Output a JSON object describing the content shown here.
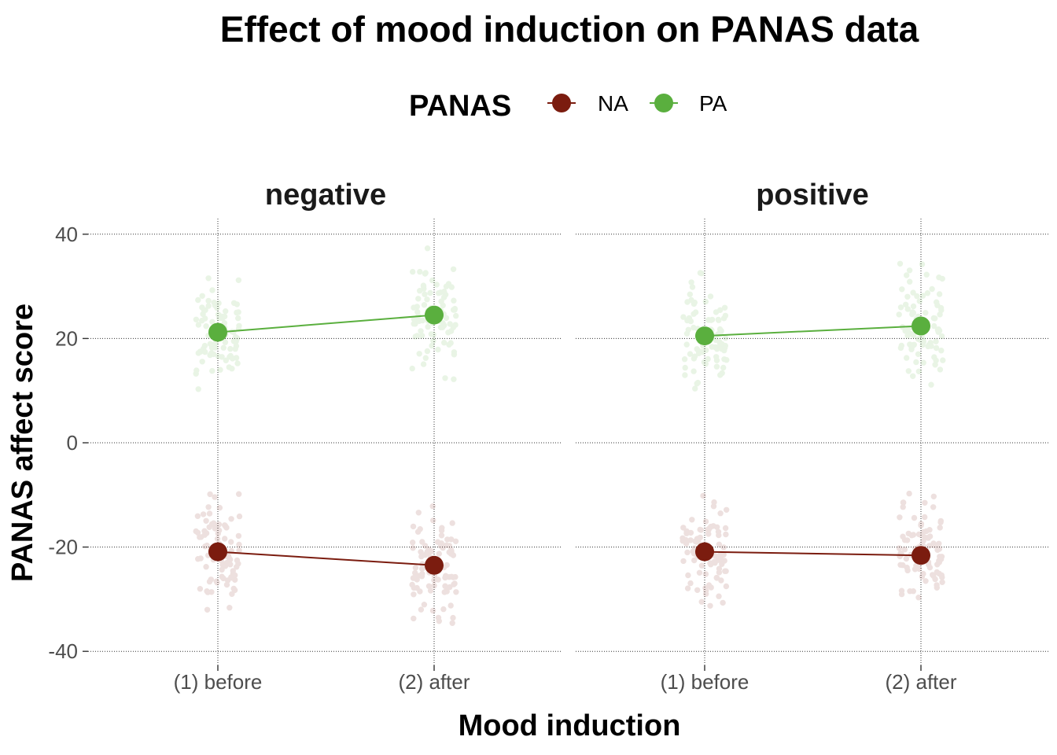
{
  "chart_data": {
    "type": "line",
    "title": "Effect of mood induction on PANAS data",
    "xlabel": "Mood induction",
    "ylabel": "PANAS affect score",
    "ylim": [
      -42,
      42
    ],
    "yticks": [
      40,
      20,
      0,
      -20,
      -40
    ],
    "categories": [
      "(1) before",
      "(2) after"
    ],
    "legend": {
      "title": "PANAS",
      "position": "top",
      "entries": [
        {
          "key": "NA",
          "label": "NA",
          "color": "#7b1c0f"
        },
        {
          "key": "PA",
          "label": "PA",
          "color": "#5aaf3e"
        }
      ]
    },
    "grid": "dotted",
    "jittered_raw_points": true,
    "facets": [
      {
        "label": "negative",
        "series": [
          {
            "name": "NA",
            "values": [
              -20.9,
              -23.5
            ]
          },
          {
            "name": "PA",
            "values": [
              21.2,
              24.5
            ]
          }
        ]
      },
      {
        "label": "positive",
        "series": [
          {
            "name": "NA",
            "values": [
              -20.9,
              -21.6
            ]
          },
          {
            "name": "PA",
            "values": [
              20.5,
              22.4
            ]
          }
        ]
      }
    ]
  }
}
